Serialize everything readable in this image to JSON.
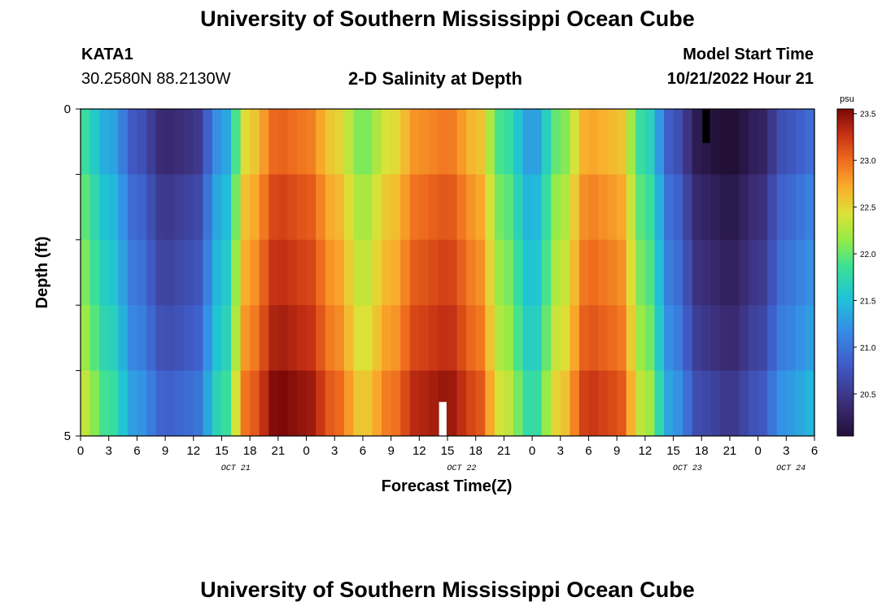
{
  "header": {
    "title": "University of Southern Mississippi Ocean Cube",
    "station": "KATA1",
    "coords": "30.2580N  88.2130W",
    "plot_title": "2-D Salinity at Depth",
    "model_label": "Model Start Time",
    "model_time": "10/21/2022 Hour 21"
  },
  "footer": {
    "title": "University of Southern Mississippi Ocean Cube"
  },
  "chart_data": {
    "type": "heatmap",
    "title": "2-D Salinity at Depth",
    "xlabel": "Forecast Time(Z)",
    "ylabel": "Depth (ft)",
    "x_tick_labels": [
      "0",
      "3",
      "6",
      "9",
      "12",
      "15",
      "18",
      "21",
      "0",
      "3",
      "6",
      "9",
      "12",
      "15",
      "18",
      "21",
      "0",
      "3",
      "6",
      "9",
      "12",
      "15",
      "18",
      "21",
      "0",
      "3",
      "6"
    ],
    "date_labels": [
      "OCT 21",
      "OCT 22",
      "OCT 23",
      "OCT 24"
    ],
    "y_tick_labels": [
      "0",
      "5"
    ],
    "ylim": [
      0,
      5
    ],
    "x_range_hours": [
      0,
      78
    ],
    "depth_rows": 5,
    "colorbar": {
      "unit": "psu",
      "range": [
        20.05,
        23.55
      ],
      "tick_labels": [
        "23.5",
        "23.0",
        "22.5",
        "22.0",
        "21.5",
        "21.0",
        "20.5"
      ],
      "tick_values": [
        23.5,
        23.0,
        22.5,
        22.0,
        21.5,
        21.0,
        20.5
      ]
    },
    "profile_hours": [
      0,
      3,
      6,
      9,
      12,
      15,
      18,
      21,
      24,
      27,
      30,
      33,
      36,
      39,
      42,
      45,
      48,
      51,
      54,
      57,
      60,
      63,
      66,
      69,
      72,
      75,
      78
    ],
    "profile_salinity": [
      22.1,
      21.6,
      21.0,
      20.6,
      20.7,
      21.5,
      22.8,
      23.3,
      23.2,
      22.8,
      22.3,
      22.7,
      23.1,
      23.2,
      22.9,
      22.1,
      21.5,
      22.3,
      23.0,
      22.9,
      22.0,
      21.0,
      20.4,
      20.25,
      20.5,
      21.0,
      21.2
    ],
    "depth_offsets": [
      -0.25,
      -0.1,
      0,
      0.1,
      0.25
    ],
    "missing_cells": [
      {
        "hour": 66.5,
        "depth_row": 0,
        "color": "black"
      },
      {
        "hour": 38.5,
        "depth_row": 4,
        "color": "white"
      }
    ]
  }
}
